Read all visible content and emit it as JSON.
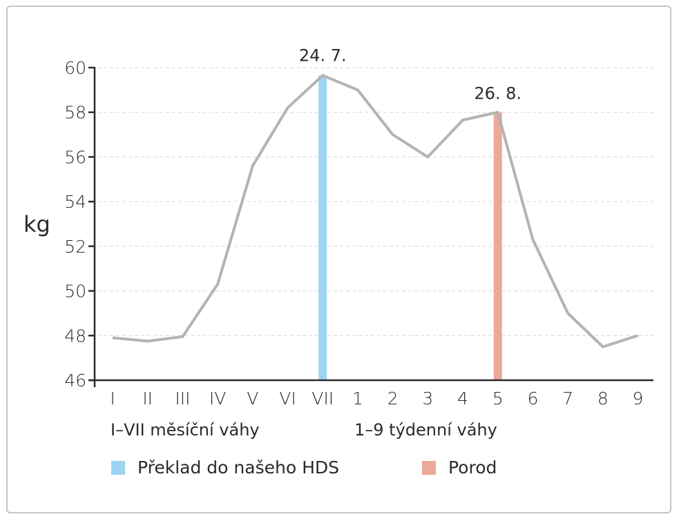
{
  "chart_data": {
    "type": "line",
    "title": "",
    "xlabel": "",
    "ylabel": "kg",
    "ylim": [
      46,
      60
    ],
    "yticks": [
      46,
      48,
      50,
      52,
      54,
      56,
      58,
      60
    ],
    "grid": true,
    "categories": [
      "I",
      "II",
      "III",
      "IV",
      "V",
      "VI",
      "VII",
      "1",
      "2",
      "3",
      "4",
      "5",
      "6",
      "7",
      "8",
      "9"
    ],
    "series": [
      {
        "name": "weight",
        "color": "#b3b3b3",
        "values": [
          47.9,
          47.75,
          47.95,
          50.3,
          55.6,
          58.2,
          59.65,
          59.0,
          57.0,
          56.0,
          57.65,
          58.0,
          52.3,
          49.0,
          47.5,
          48.0
        ]
      }
    ],
    "markers": [
      {
        "name": "Překlad do našeho HDS",
        "category": "VII",
        "top_value": 59.65,
        "label": "24. 7.",
        "color": "#9fd3f2"
      },
      {
        "name": "Porod",
        "category": "5",
        "top_value": 58.0,
        "label": "26. 8.",
        "color": "#eca898"
      }
    ],
    "captions": [
      "I–VII měsíční váhy",
      "1–9 týdenní váhy"
    ],
    "legend": [
      {
        "label": "Překlad do našeho HDS",
        "color": "#9fd3f2"
      },
      {
        "label": "Porod",
        "color": "#eca898"
      }
    ],
    "legend_position": "bottom"
  }
}
